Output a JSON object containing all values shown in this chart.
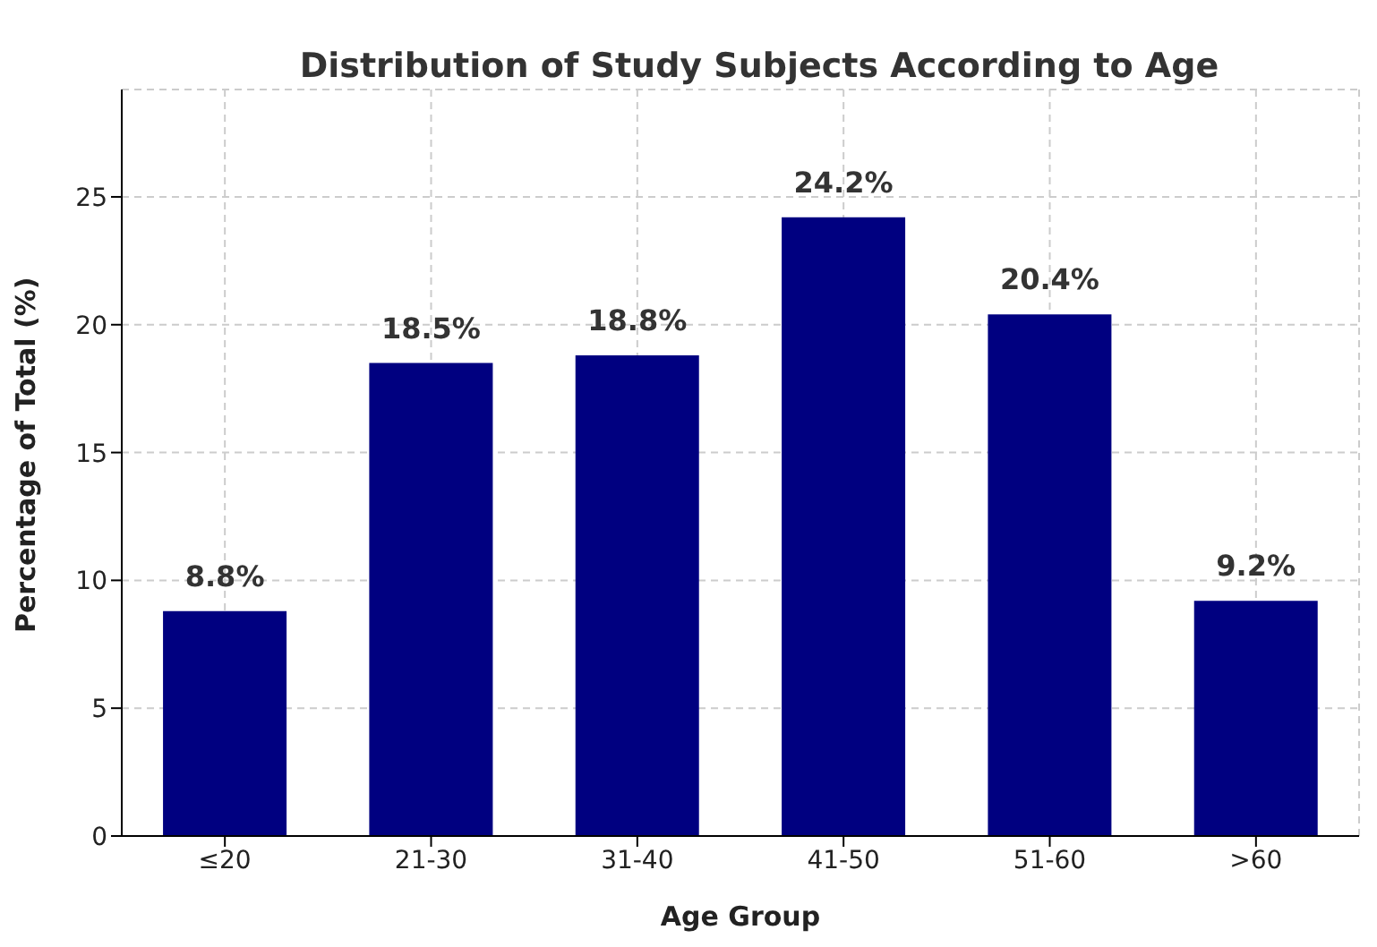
{
  "chart_data": {
    "type": "bar",
    "title": "Distribution of Study Subjects According to Age",
    "xlabel": "Age Group",
    "ylabel": "Percentage of Total (%)",
    "categories": [
      "≤20",
      "21-30",
      "31-40",
      "41-50",
      "51-60",
      ">60"
    ],
    "values": [
      8.8,
      18.5,
      18.8,
      24.2,
      20.4,
      9.2
    ],
    "value_labels": [
      "8.8%",
      "18.5%",
      "18.8%",
      "24.2%",
      "20.4%",
      "9.2%"
    ],
    "color": "#000080",
    "ylim": [
      0,
      29.2
    ],
    "yticks": [
      0,
      5,
      10,
      15,
      20,
      25
    ],
    "grid": true
  }
}
